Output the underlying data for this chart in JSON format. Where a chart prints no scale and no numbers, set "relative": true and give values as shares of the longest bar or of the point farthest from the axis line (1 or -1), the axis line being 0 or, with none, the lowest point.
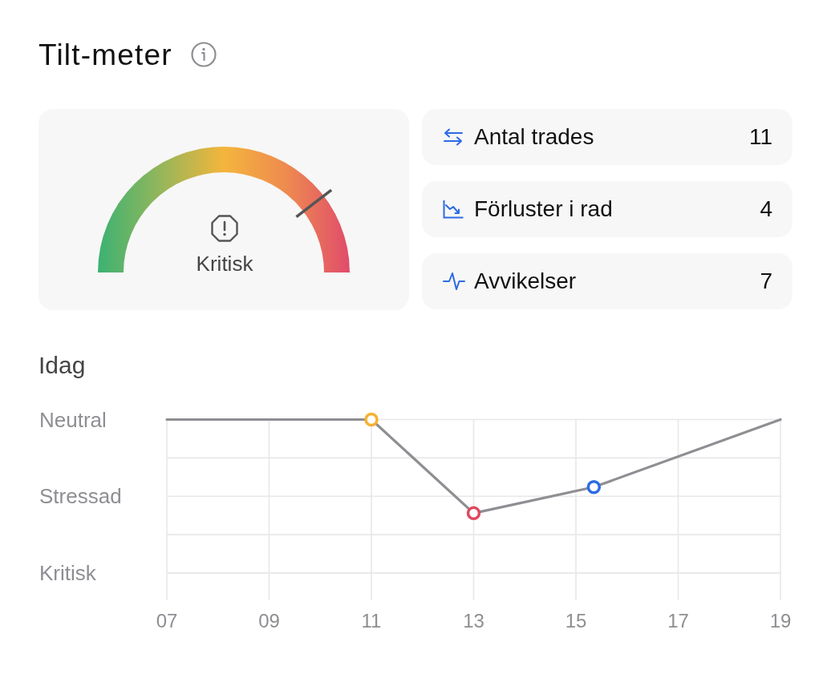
{
  "chart_data": [
    {
      "type": "other",
      "title": "Tilt-meter",
      "annotations": [
        "Kritisk"
      ]
    },
    {
      "type": "other",
      "annotations": [
        "Antal trades",
        "11",
        "Förluster i rad",
        "4",
        "Avvikelser",
        "7"
      ]
    },
    {
      "type": "line",
      "title": "Idag",
      "relative": true,
      "x": [
        7,
        11,
        13,
        15.35,
        19
      ],
      "series": [
        {
          "type": "line",
          "color": "#8e8e93",
          "values": [
            1,
            1,
            0.39,
            0.56,
            1
          ]
        },
        {
          "type": "scatter",
          "x": [
            11,
            13,
            15.35
          ],
          "values": [
            1,
            0.39,
            0.56
          ],
          "colors": [
            "#f5b133",
            "#e0485c",
            "#2d6be4"
          ],
          "marker": "circle"
        }
      ],
      "xlim": [
        7,
        19
      ],
      "xticks": [
        {
          "value": 7,
          "label": "07"
        },
        {
          "value": 9,
          "label": "09"
        },
        11,
        13,
        15,
        17,
        19
      ],
      "y_categories": [
        "Neutral",
        null,
        "Stressad",
        null,
        "Kritisk"
      ],
      "grid": true
    }
  ]
}
